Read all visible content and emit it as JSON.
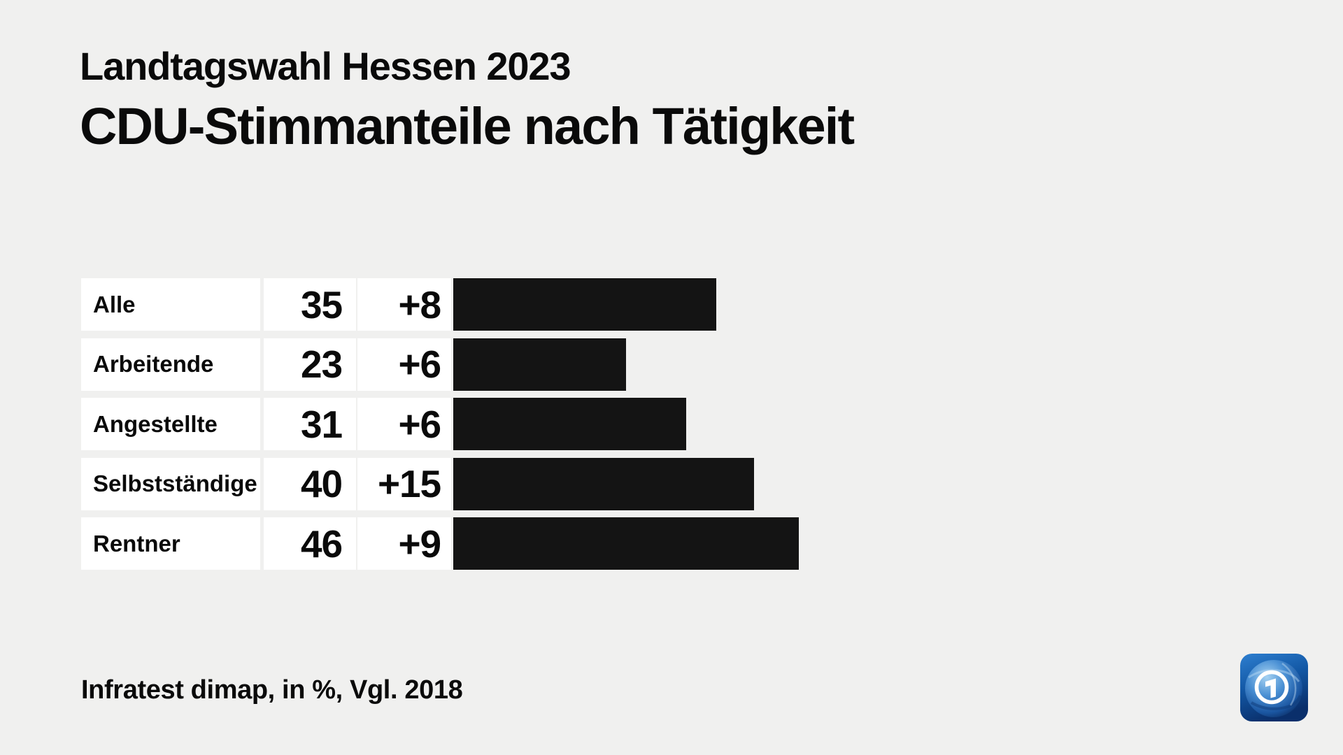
{
  "header": {
    "kicker": "Landtagswahl Hessen 2023",
    "title": "CDU-Stimmanteile nach Tätigkeit"
  },
  "footer": {
    "source_note": "Infratest dimap, in %, Vgl. 2018"
  },
  "icons": {
    "logo": "ard-tagesschau-globe-logo"
  },
  "colors": {
    "background": "#f0f0ef",
    "cell_background": "#ffffff",
    "bar": "#141414",
    "text": "#0a0a0a",
    "logo_blue_light": "#2e7fd0",
    "logo_blue_dark": "#0a2f6b"
  },
  "chart_data": {
    "type": "bar",
    "orientation": "horizontal",
    "title": "CDU-Stimmanteile nach Tätigkeit",
    "subtitle": "Landtagswahl Hessen 2023",
    "unit": "in %",
    "comparison": "Vgl. 2018",
    "source": "Infratest dimap",
    "categories": [
      "Alle",
      "Arbeitende",
      "Angestellte",
      "Selbstständige",
      "Rentner"
    ],
    "values": [
      35,
      23,
      31,
      40,
      46
    ],
    "changes": [
      "+8",
      "+6",
      "+6",
      "+15",
      "+9"
    ],
    "bar_color": "#141414",
    "axis_hidden": true,
    "xlim": [
      0,
      46
    ]
  }
}
